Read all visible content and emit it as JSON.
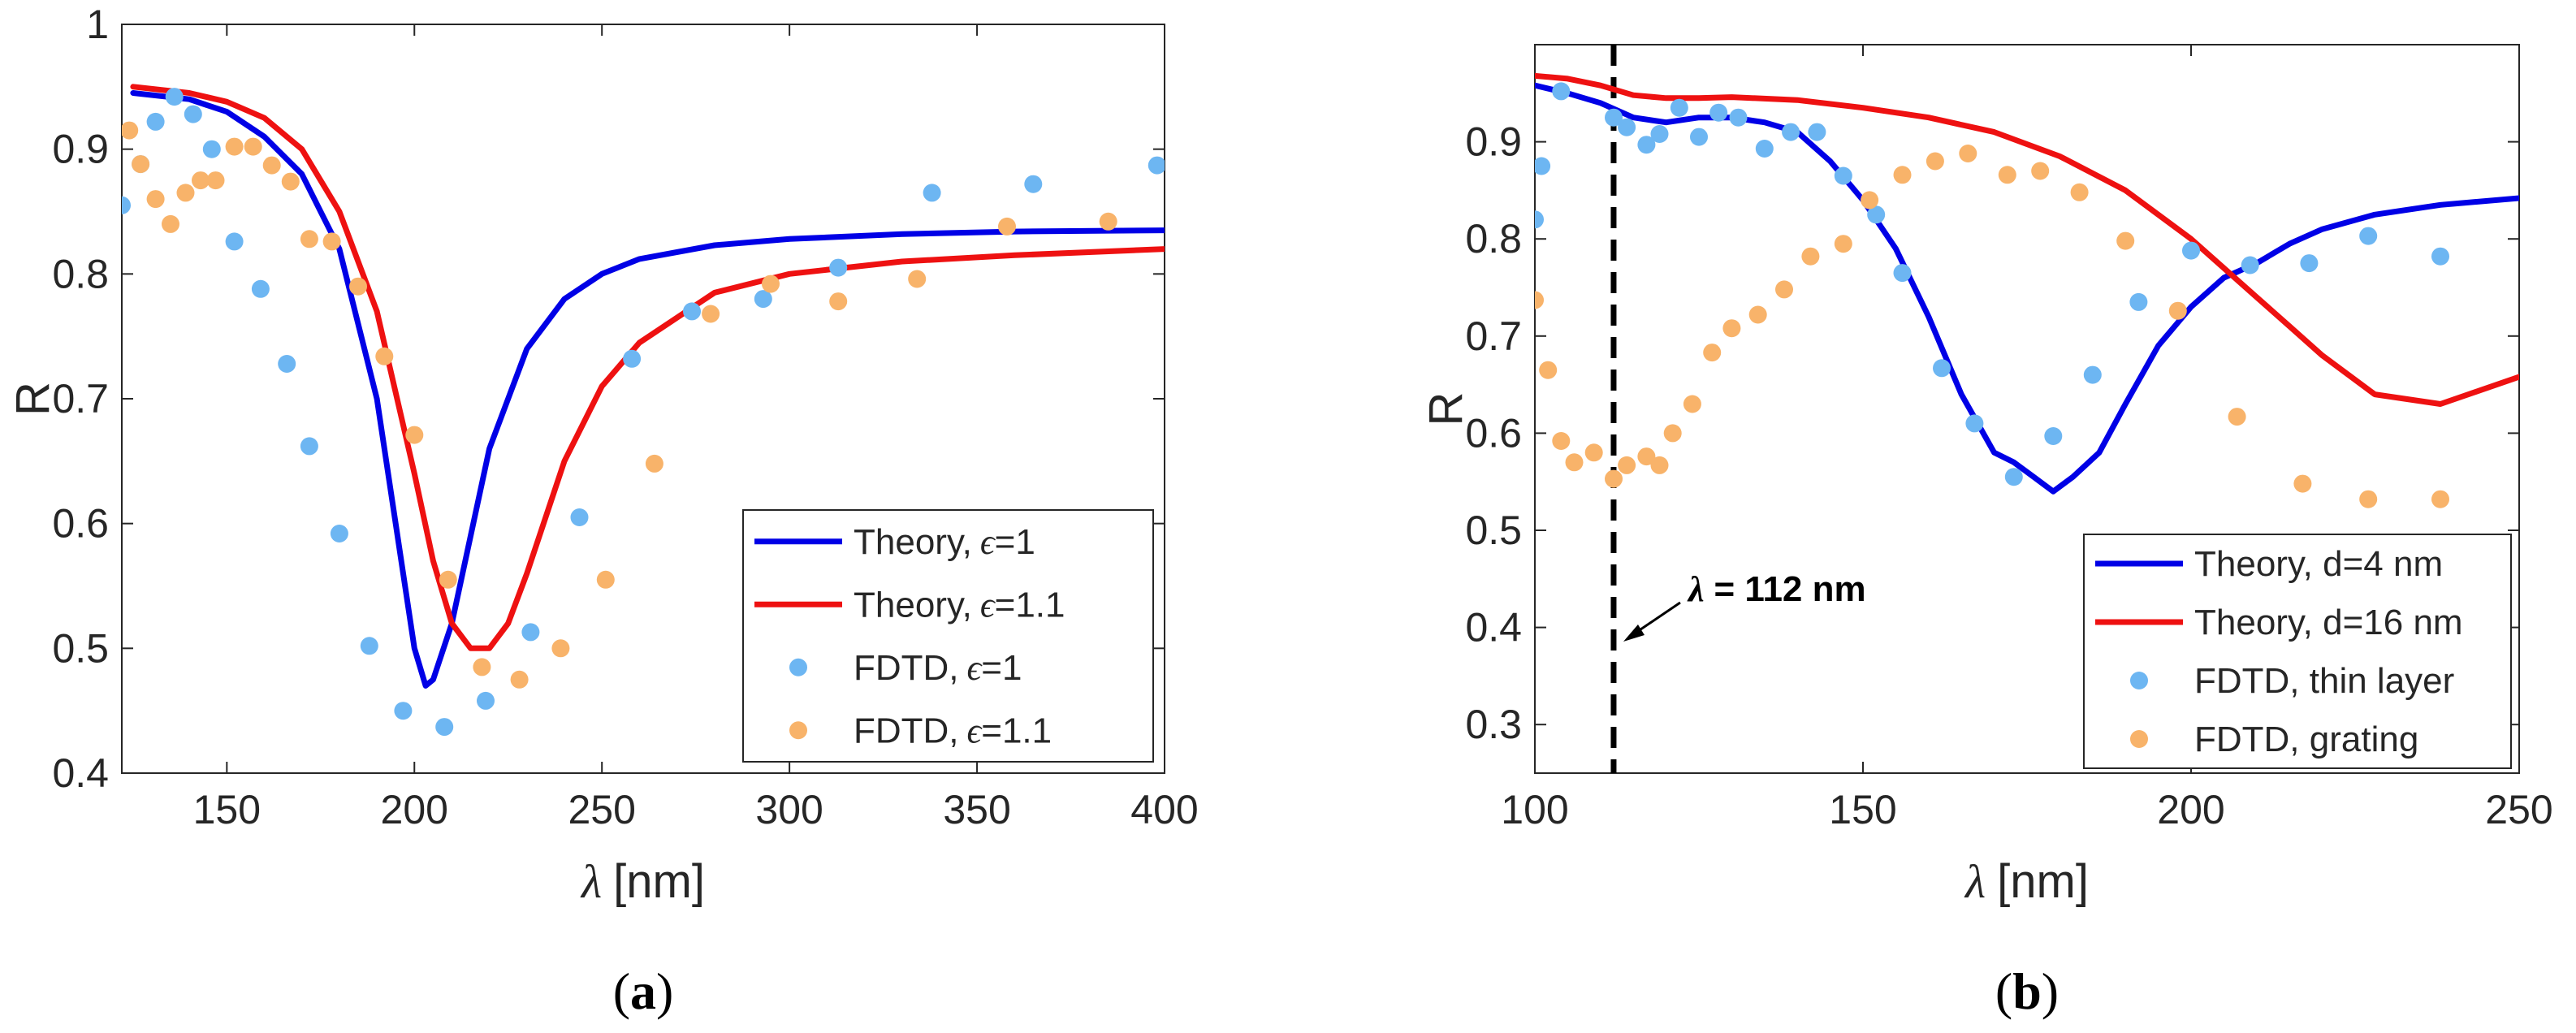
{
  "chart_data": [
    {
      "type": "line",
      "panel_label": "a",
      "xlabel_symbol": "λ",
      "xlabel_unit": "[nm]",
      "ylabel": "R",
      "xlim": [
        122,
        400
      ],
      "ylim": [
        0.4,
        1.0
      ],
      "xticks": [
        "150",
        "200",
        "250",
        "300",
        "350",
        "400"
      ],
      "xtick_values": [
        150,
        200,
        250,
        300,
        350,
        400
      ],
      "yticks": [
        "0.4",
        "0.5",
        "0.6",
        "0.7",
        "0.8",
        "0.9",
        "1"
      ],
      "ytick_values": [
        0.4,
        0.5,
        0.6,
        0.7,
        0.8,
        0.9,
        1.0
      ],
      "legend_position": "bottom-right",
      "colors": {
        "blue_line": "#0000e6",
        "red_line": "#ee1111",
        "blue_dot": "#6db6f2",
        "orange_dot": "#f8b36a"
      },
      "series": [
        {
          "name_prefix": "Theory,",
          "name_symbol": "ϵ",
          "name_suffix": "=1",
          "style": "line",
          "color": "#0000e6",
          "x": [
            125,
            140,
            150,
            160,
            170,
            180,
            190,
            195,
            200,
            203,
            205,
            210,
            215,
            220,
            230,
            240,
            250,
            260,
            280,
            300,
            330,
            360,
            400
          ],
          "y": [
            0.945,
            0.94,
            0.93,
            0.91,
            0.88,
            0.82,
            0.7,
            0.6,
            0.5,
            0.47,
            0.475,
            0.52,
            0.59,
            0.66,
            0.74,
            0.78,
            0.8,
            0.812,
            0.823,
            0.828,
            0.832,
            0.834,
            0.835
          ]
        },
        {
          "name_prefix": "Theory,",
          "name_symbol": "ϵ",
          "name_suffix": "=1.1",
          "style": "line",
          "color": "#ee1111",
          "x": [
            125,
            140,
            150,
            160,
            170,
            180,
            190,
            200,
            205,
            210,
            215,
            220,
            225,
            230,
            240,
            250,
            260,
            280,
            300,
            330,
            360,
            400
          ],
          "y": [
            0.95,
            0.945,
            0.938,
            0.925,
            0.9,
            0.85,
            0.77,
            0.64,
            0.57,
            0.52,
            0.5,
            0.5,
            0.52,
            0.56,
            0.65,
            0.71,
            0.745,
            0.785,
            0.8,
            0.81,
            0.815,
            0.82
          ]
        },
        {
          "name_prefix": "FDTD,",
          "name_symbol": "ϵ",
          "name_suffix": "=1",
          "style": "scatter",
          "color": "#6db6f2",
          "x": [
            122,
            127,
            131,
            136,
            141,
            146,
            152,
            159,
            166,
            172,
            180,
            188,
            197,
            208,
            219,
            231,
            244,
            258,
            274,
            293,
            313,
            338,
            365,
            398
          ],
          "y": [
            0.855,
            0.888,
            0.922,
            0.942,
            0.928,
            0.9,
            0.826,
            0.788,
            0.728,
            0.662,
            0.592,
            0.502,
            0.45,
            0.437,
            0.458,
            0.513,
            0.605,
            0.732,
            0.77,
            0.78,
            0.805,
            0.865,
            0.872,
            0.887
          ]
        },
        {
          "name_prefix": "FDTD,",
          "name_symbol": "ϵ",
          "name_suffix": "=1.1",
          "style": "scatter",
          "color": "#f8b36a",
          "x": [
            124,
            127,
            131,
            135,
            139,
            143,
            147,
            152,
            157,
            162,
            167,
            172,
            178,
            185,
            192,
            200,
            209,
            218,
            228,
            239,
            251,
            264,
            279,
            295,
            313,
            334,
            358,
            385
          ],
          "y": [
            0.915,
            0.888,
            0.86,
            0.84,
            0.865,
            0.875,
            0.875,
            0.902,
            0.902,
            0.887,
            0.874,
            0.828,
            0.826,
            0.79,
            0.734,
            0.671,
            0.555,
            0.485,
            0.475,
            0.5,
            0.555,
            0.648,
            0.768,
            0.792,
            0.778,
            0.796,
            0.838,
            0.842
          ]
        }
      ]
    },
    {
      "type": "line",
      "panel_label": "b",
      "xlabel_symbol": "λ",
      "xlabel_unit": "[nm]",
      "ylabel": "R",
      "xlim": [
        100,
        250
      ],
      "ylim": [
        0.25,
        1.0
      ],
      "xticks": [
        "100",
        "150",
        "200",
        "250"
      ],
      "xtick_values": [
        100,
        150,
        200,
        250
      ],
      "yticks": [
        "0.3",
        "0.4",
        "0.5",
        "0.6",
        "0.7",
        "0.8",
        "0.9"
      ],
      "ytick_values": [
        0.3,
        0.4,
        0.5,
        0.6,
        0.7,
        0.8,
        0.9
      ],
      "legend_position": "bottom-right",
      "annotation": {
        "symbol": "λ",
        "text": "= 112 nm",
        "x_value": 112
      },
      "series": [
        {
          "name": "Theory, d=4 nm",
          "style": "line",
          "color": "#0000e6",
          "x": [
            100,
            105,
            110,
            115,
            120,
            125,
            130,
            135,
            140,
            145,
            150,
            155,
            160,
            165,
            170,
            173,
            176,
            179,
            182,
            186,
            190,
            195,
            200,
            205,
            210,
            215,
            220,
            228,
            238,
            250
          ],
          "y": [
            0.958,
            0.95,
            0.94,
            0.925,
            0.92,
            0.925,
            0.925,
            0.92,
            0.91,
            0.88,
            0.84,
            0.79,
            0.72,
            0.64,
            0.58,
            0.57,
            0.555,
            0.54,
            0.555,
            0.58,
            0.63,
            0.69,
            0.73,
            0.76,
            0.775,
            0.795,
            0.81,
            0.825,
            0.835,
            0.842
          ]
        },
        {
          "name": "Theory, d=16 nm",
          "style": "line",
          "color": "#ee1111",
          "x": [
            100,
            105,
            110,
            115,
            120,
            125,
            130,
            140,
            150,
            160,
            170,
            180,
            190,
            200,
            210,
            215,
            220,
            228,
            238,
            250
          ],
          "y": [
            0.968,
            0.965,
            0.958,
            0.948,
            0.945,
            0.945,
            0.946,
            0.943,
            0.935,
            0.925,
            0.91,
            0.885,
            0.85,
            0.8,
            0.74,
            0.71,
            0.68,
            0.64,
            0.63,
            0.658
          ]
        },
        {
          "name": "FDTD, thin layer",
          "style": "scatter",
          "color": "#6db6f2",
          "x": [
            100,
            101,
            104,
            112,
            114,
            117,
            119,
            122,
            125,
            128,
            131,
            135,
            139,
            143,
            147,
            152,
            156,
            162,
            167,
            173,
            179,
            185,
            192,
            200,
            209,
            218,
            227,
            238
          ],
          "y": [
            0.82,
            0.875,
            0.952,
            0.925,
            0.915,
            0.897,
            0.908,
            0.935,
            0.905,
            0.93,
            0.925,
            0.893,
            0.91,
            0.91,
            0.865,
            0.825,
            0.765,
            0.667,
            0.61,
            0.555,
            0.597,
            0.66,
            0.735,
            0.788,
            0.773,
            0.775,
            0.803,
            0.782
          ]
        },
        {
          "name": "FDTD, grating",
          "style": "scatter",
          "color": "#f8b36a",
          "x": [
            100,
            102,
            104,
            106,
            109,
            112,
            114,
            117,
            119,
            121,
            124,
            127,
            130,
            134,
            138,
            142,
            147,
            151,
            156,
            161,
            166,
            172,
            177,
            183,
            190,
            198,
            207,
            217,
            227,
            238
          ],
          "y": [
            0.737,
            0.665,
            0.592,
            0.57,
            0.58,
            0.553,
            0.567,
            0.576,
            0.567,
            0.6,
            0.63,
            0.683,
            0.708,
            0.722,
            0.748,
            0.782,
            0.795,
            0.84,
            0.866,
            0.88,
            0.888,
            0.866,
            0.87,
            0.848,
            0.798,
            0.726,
            0.617,
            0.548,
            0.532,
            0.532
          ]
        }
      ]
    }
  ]
}
